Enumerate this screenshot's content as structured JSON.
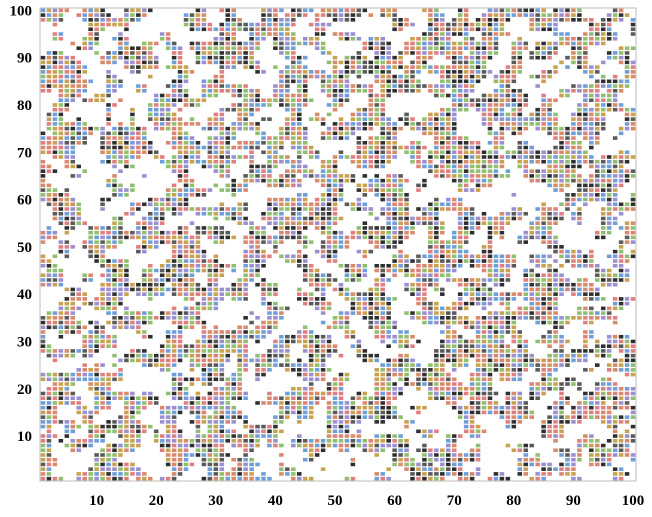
{
  "chart_data": {
    "type": "heatmap",
    "title": "",
    "xlabel": "",
    "ylabel": "",
    "grid_size": [
      100,
      100
    ],
    "xlim": [
      1,
      100
    ],
    "ylim": [
      1,
      100
    ],
    "x_ticks": [
      10,
      20,
      30,
      40,
      50,
      60,
      70,
      80,
      90,
      100
    ],
    "y_ticks": [
      10,
      20,
      30,
      40,
      50,
      60,
      70,
      80,
      90,
      100
    ],
    "x_tick_labels": [
      "10",
      "20",
      "30",
      "40",
      "50",
      "60",
      "70",
      "80",
      "90",
      "100"
    ],
    "y_tick_labels": [
      "10",
      "20",
      "30",
      "40",
      "50",
      "60",
      "70",
      "80",
      "90",
      "100"
    ],
    "occupied_fraction": 0.6,
    "empty_color": "#ffffff",
    "cell_colors": [
      "#2f2f2f",
      "#d98a6a",
      "#6f9fd8",
      "#8fbf6f",
      "#c9a24f",
      "#e07f7f",
      "#9a8fd0",
      "#5a5a5a"
    ],
    "grid": false,
    "legend": "none"
  }
}
